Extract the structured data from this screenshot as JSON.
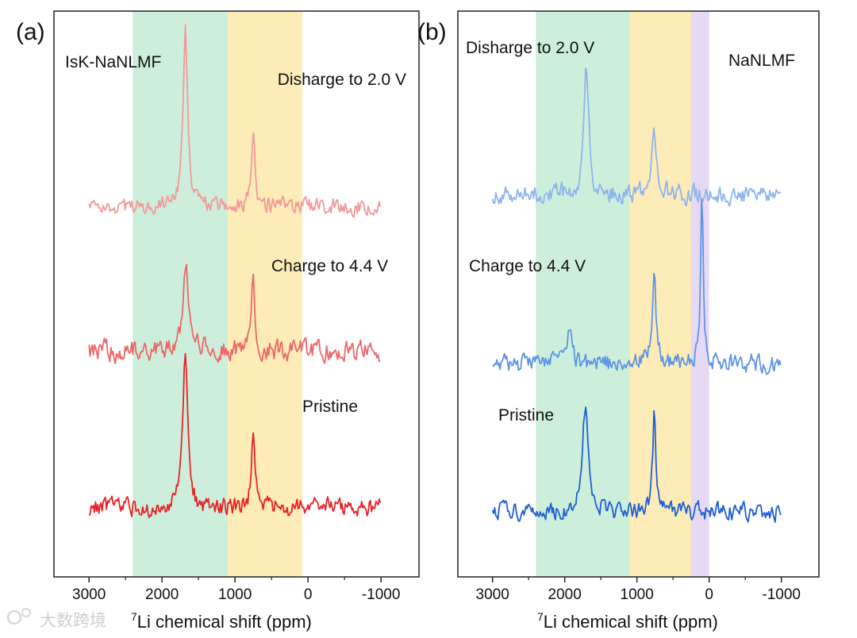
{
  "watermark": "大数跨境",
  "chart_data": [
    {
      "type": "line",
      "panel_tag": "(a)",
      "sample_label": "IsK-NaNLMF",
      "xlabel_sup": "7",
      "xlabel": "Li chemical shift (ppm)",
      "xlim": [
        3480,
        -1520
      ],
      "xticks": [
        3000,
        2000,
        1000,
        0,
        -1000
      ],
      "xtick_labels": [
        "3000",
        "2000",
        "1000",
        "0",
        "-1000"
      ],
      "minor_xticks": [
        2500,
        1500,
        500,
        -500
      ],
      "ylim": [
        0,
        100
      ],
      "bands": [
        {
          "from": 2400,
          "to": 1100,
          "color": "#cdeedb"
        },
        {
          "from": 1100,
          "to": 80,
          "color": "#fdebb8"
        }
      ],
      "series": [
        {
          "name": "Disharge to 2.0 V",
          "color": "#f29a9a",
          "offset": 65.5,
          "noise": 1.4,
          "seed": 11,
          "peaks": [
            {
              "center": 1680,
              "height": 31,
              "width": 35
            },
            {
              "center": 750,
              "height": 12,
              "width": 30
            }
          ]
        },
        {
          "name": "Charge to 4.4 V",
          "color": "#ec6868",
          "offset": 40,
          "noise": 1.8,
          "seed": 23,
          "peaks": [
            {
              "center": 1670,
              "height": 16,
              "width": 40
            },
            {
              "center": 750,
              "height": 12.5,
              "width": 30
            }
          ]
        },
        {
          "name": "Pristine",
          "color": "#e5242b",
          "offset": 12.2,
          "noise": 1.6,
          "seed": 37,
          "peaks": [
            {
              "center": 1680,
              "height": 26,
              "width": 40
            },
            {
              "center": 750,
              "height": 12.5,
              "width": 30
            }
          ]
        }
      ]
    },
    {
      "type": "line",
      "panel_tag": "(b)",
      "sample_label": "NaNLMF",
      "xlabel_sup": "7",
      "xlabel": "Li chemical shift (ppm)",
      "xlim": [
        3480,
        -1520
      ],
      "xticks": [
        3000,
        2000,
        1000,
        0,
        -1000
      ],
      "xtick_labels": [
        "3000",
        "2000",
        "1000",
        "0",
        "-1000"
      ],
      "minor_xticks": [
        2500,
        1500,
        500,
        -500
      ],
      "ylim": [
        0,
        100
      ],
      "bands": [
        {
          "from": 2400,
          "to": 1100,
          "color": "#cdeedb"
        },
        {
          "from": 1100,
          "to": 250,
          "color": "#fdebb8"
        },
        {
          "from": 250,
          "to": 0,
          "color": "#e6d9f3"
        }
      ],
      "series": [
        {
          "name": "Disharge to 2.0 V",
          "color": "#8fb5ec",
          "offset": 67.6,
          "noise": 1.6,
          "seed": 51,
          "peaks": [
            {
              "center": 1700,
              "height": 23,
              "width": 40
            },
            {
              "center": 760,
              "height": 12,
              "width": 30
            }
          ]
        },
        {
          "name": "Charge to 4.4 V",
          "color": "#5e95e4",
          "offset": 37.6,
          "noise": 1.6,
          "seed": 67,
          "peaks": [
            {
              "center": 1950,
              "height": 5,
              "width": 60
            },
            {
              "center": 760,
              "height": 16.5,
              "width": 30
            },
            {
              "center": 100,
              "height": 29,
              "width": 22
            }
          ]
        },
        {
          "name": "Pristine",
          "color": "#1f5fd4",
          "offset": 11.5,
          "noise": 1.5,
          "seed": 79,
          "peaks": [
            {
              "center": 1720,
              "height": 19,
              "width": 50
            },
            {
              "center": 760,
              "height": 18,
              "width": 25
            }
          ]
        }
      ]
    }
  ]
}
